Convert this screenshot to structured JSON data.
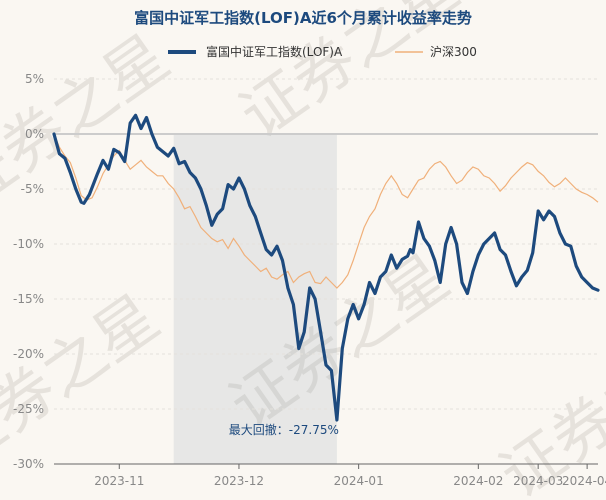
{
  "chart_data": {
    "type": "line",
    "title": "富国中证军工指数(LOF)A近6个月累计收益率走势",
    "xlabel": "",
    "ylabel": "",
    "ylim": [
      -30,
      5
    ],
    "y_ticks": [
      "5%",
      "0%",
      "-5%",
      "-10%",
      "-15%",
      "-20%",
      "-25%",
      "-30%"
    ],
    "y_tick_values": [
      5,
      0,
      -5,
      -10,
      -15,
      -20,
      -25,
      -30
    ],
    "x_ticks": [
      "2023-11",
      "2023-12",
      "2024-01",
      "2024-02",
      "2024-03",
      "2024-04"
    ],
    "x_tick_positions": [
      12,
      34,
      56,
      78,
      89,
      98
    ],
    "x_range": [
      0,
      100
    ],
    "legend": "top",
    "watermark": "证券之星",
    "series": [
      {
        "name": "富国中证军工指数(LOF)A",
        "color": "#1d4a7e",
        "x": [
          0,
          1,
          2,
          3,
          4,
          5,
          5.5,
          6.5,
          8,
          9,
          10,
          11,
          12,
          13,
          14,
          15,
          16,
          17,
          18,
          19,
          20,
          21,
          22,
          23,
          24,
          25,
          26,
          27,
          28,
          29,
          30,
          31,
          32,
          33,
          34,
          35,
          36,
          37,
          38,
          39,
          40,
          41,
          42,
          43,
          44,
          45,
          46,
          47,
          48,
          49,
          50,
          51,
          52,
          53,
          54,
          55,
          56,
          57,
          58,
          59,
          60,
          61,
          62,
          63,
          64,
          65,
          65.5,
          66,
          67,
          68,
          69,
          70,
          71,
          72,
          73,
          74,
          75,
          76,
          77,
          78,
          79,
          80,
          81,
          82,
          83,
          84,
          85,
          86,
          87,
          88,
          89,
          90,
          91,
          92,
          93,
          94,
          95,
          96,
          97,
          98,
          99,
          100
        ],
        "values": [
          0,
          -1.8,
          -2.2,
          -3.5,
          -5,
          -6.2,
          -6.3,
          -5.5,
          -3.6,
          -2.4,
          -3.2,
          -1.4,
          -1.7,
          -2.5,
          1,
          1.7,
          0.5,
          1.5,
          0,
          -1.2,
          -1.6,
          -2,
          -1.3,
          -2.7,
          -2.5,
          -3.5,
          -4,
          -5,
          -6.5,
          -8.3,
          -7.3,
          -6.8,
          -4.6,
          -5,
          -4,
          -5,
          -6.5,
          -7.5,
          -9,
          -10.5,
          -11,
          -10.2,
          -11.5,
          -14,
          -15.5,
          -19.5,
          -18,
          -14,
          -15,
          -18,
          -21,
          -21.5,
          -26,
          -19.5,
          -16.8,
          -15.5,
          -16.8,
          -15.5,
          -13.5,
          -14.5,
          -13,
          -12.5,
          -11,
          -12.2,
          -11.4,
          -11.1,
          -10.5,
          -10.8,
          -8,
          -9.5,
          -10.2,
          -11.5,
          -13.5,
          -10,
          -8.5,
          -10,
          -13.5,
          -14.5,
          -12.5,
          -11,
          -10,
          -9.5,
          -9,
          -10.5,
          -11,
          -12.5,
          -13.8,
          -13,
          -12.4,
          -10.8,
          -7,
          -7.8,
          -7,
          -7.5,
          -9,
          -10,
          -10.2,
          -12,
          -13,
          -13.5,
          -14,
          -14.2
        ]
      },
      {
        "name": "沪深300",
        "color": "#f0b07a",
        "x": [
          0,
          1,
          2,
          3,
          4,
          5,
          6,
          7,
          8,
          9,
          10,
          11,
          12,
          13,
          14,
          15,
          16,
          17,
          18,
          19,
          20,
          21,
          22,
          23,
          24,
          25,
          26,
          27,
          28,
          29,
          30,
          31,
          32,
          33,
          34,
          35,
          36,
          37,
          38,
          39,
          40,
          41,
          42,
          43,
          44,
          45,
          46,
          47,
          48,
          49,
          50,
          51,
          52,
          53,
          54,
          55,
          56,
          57,
          58,
          59,
          60,
          61,
          62,
          63,
          64,
          65,
          66,
          67,
          68,
          69,
          70,
          71,
          72,
          73,
          74,
          75,
          76,
          77,
          78,
          79,
          80,
          81,
          82,
          83,
          84,
          85,
          86,
          87,
          88,
          89,
          90,
          91,
          92,
          93,
          94,
          95,
          96,
          97,
          98,
          99,
          100
        ],
        "values": [
          0,
          -1.2,
          -2,
          -2.6,
          -4,
          -5.6,
          -6,
          -5.8,
          -4.8,
          -3.6,
          -2.8,
          -2,
          -1.5,
          -2.4,
          -3.2,
          -2.8,
          -2.4,
          -3,
          -3.4,
          -3.8,
          -3.8,
          -4.5,
          -5,
          -5.8,
          -6.8,
          -6.6,
          -7.5,
          -8.5,
          -9,
          -9.5,
          -9.8,
          -9.6,
          -10.4,
          -9.5,
          -10.2,
          -11,
          -11.5,
          -12,
          -12.5,
          -12.2,
          -13,
          -13.2,
          -12.8,
          -12.5,
          -13.5,
          -13,
          -12.7,
          -12.5,
          -13.5,
          -13.6,
          -13,
          -13.5,
          -14,
          -13.5,
          -12.8,
          -11.5,
          -10,
          -8.5,
          -7.5,
          -6.8,
          -5.5,
          -4.5,
          -3.8,
          -4.5,
          -5.5,
          -5.8,
          -5,
          -4.2,
          -4,
          -3.2,
          -2.7,
          -2.5,
          -3,
          -3.8,
          -4.5,
          -4.2,
          -3.5,
          -3,
          -3.2,
          -3.8,
          -4,
          -4.5,
          -5.2,
          -4.7,
          -4,
          -3.5,
          -3,
          -2.6,
          -2.8,
          -3.4,
          -3.8,
          -4.4,
          -4.8,
          -4.5,
          -4,
          -4.5,
          -5,
          -5.3,
          -5.5,
          -5.8,
          -6.2
        ]
      }
    ],
    "highlight_range": [
      22,
      52
    ],
    "annotation": {
      "label": "最大回撤：-27.75%",
      "x": 52,
      "y": -26
    }
  }
}
